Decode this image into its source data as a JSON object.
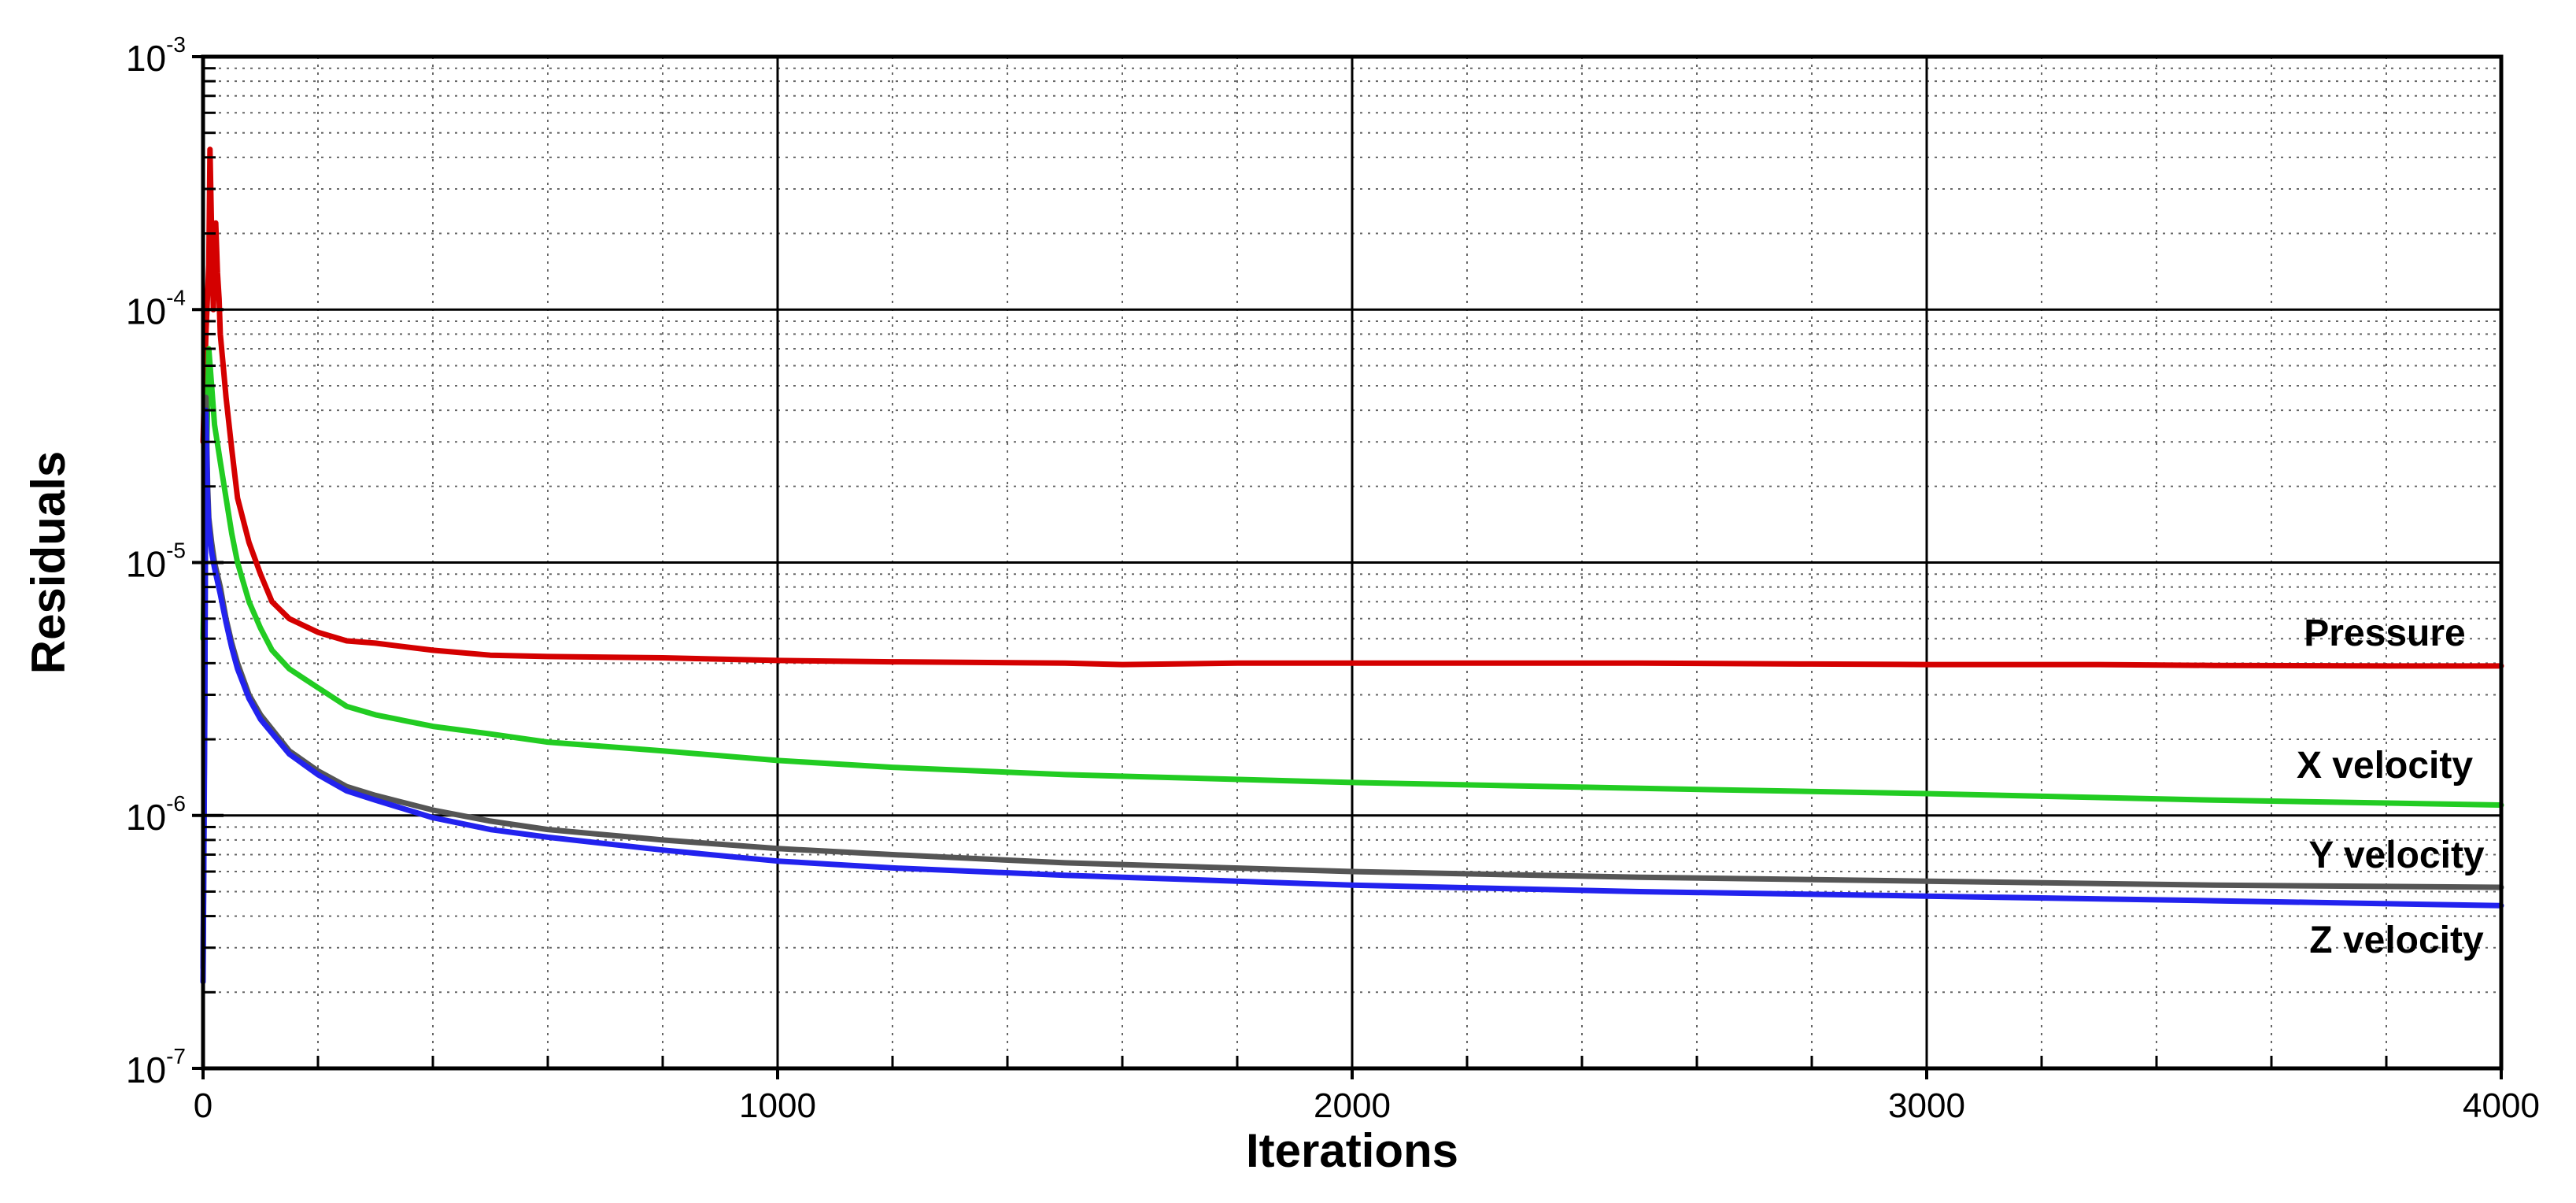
{
  "chart_data": {
    "type": "line",
    "title": "",
    "xlabel": "Iterations",
    "ylabel": "Residuals",
    "x_scale": "linear",
    "y_scale": "log",
    "xlim": [
      0,
      4000
    ],
    "ylim": [
      1e-07,
      0.001
    ],
    "x_ticks": [
      {
        "value": 0,
        "label": "0"
      },
      {
        "value": 1000,
        "label": "1000"
      },
      {
        "value": 2000,
        "label": "2000"
      },
      {
        "value": 3000,
        "label": "3000"
      },
      {
        "value": 4000,
        "label": "4000"
      }
    ],
    "y_ticks": [
      {
        "value": 1e-07,
        "base": "10",
        "exp": "-7"
      },
      {
        "value": 1e-06,
        "base": "10",
        "exp": "-6"
      },
      {
        "value": 1e-05,
        "base": "10",
        "exp": "-5"
      },
      {
        "value": 0.0001,
        "base": "10",
        "exp": "-4"
      },
      {
        "value": 0.001,
        "base": "10",
        "exp": "-3"
      }
    ],
    "grid": {
      "major": true,
      "minor": true,
      "minor_style": "dotted"
    },
    "legend": "inline labels near right end of each series",
    "series": [
      {
        "name": "Pressure",
        "color": "#d40000",
        "x": [
          0,
          5,
          10,
          12,
          15,
          18,
          20,
          22,
          25,
          28,
          30,
          35,
          40,
          50,
          60,
          80,
          100,
          120,
          150,
          200,
          250,
          300,
          400,
          500,
          600,
          800,
          1000,
          1200,
          1500,
          1600,
          1800,
          2000,
          2200,
          2500,
          2800,
          3000,
          3300,
          3500,
          3800,
          4000
        ],
        "y": [
          3e-05,
          8e-05,
          0.00015,
          0.00043,
          0.0002,
          0.0001,
          0.00015,
          0.00022,
          0.00014,
          0.00011,
          8e-05,
          6e-05,
          4.5e-05,
          2.8e-05,
          1.8e-05,
          1.2e-05,
          9e-06,
          7e-06,
          6e-06,
          5.3e-06,
          4.9e-06,
          4.8e-06,
          4.5e-06,
          4.3e-06,
          4.25e-06,
          4.2e-06,
          4.1e-06,
          4.05e-06,
          4e-06,
          3.95e-06,
          4e-06,
          4e-06,
          4e-06,
          4e-06,
          3.97e-06,
          3.95e-06,
          3.95e-06,
          3.92e-06,
          3.9e-06,
          3.9e-06
        ]
      },
      {
        "name": "X velocity",
        "color": "#22cc22",
        "x": [
          0,
          5,
          10,
          15,
          20,
          30,
          40,
          50,
          60,
          80,
          100,
          120,
          150,
          200,
          250,
          300,
          400,
          500,
          600,
          800,
          1000,
          1200,
          1500,
          2000,
          2500,
          3000,
          3500,
          4000
        ],
        "y": [
          5e-06,
          2e-05,
          7e-05,
          5e-05,
          3.5e-05,
          2.5e-05,
          1.8e-05,
          1.3e-05,
          1e-05,
          7e-06,
          5.5e-06,
          4.5e-06,
          3.8e-06,
          3.2e-06,
          2.7e-06,
          2.5e-06,
          2.25e-06,
          2.1e-06,
          1.95e-06,
          1.8e-06,
          1.65e-06,
          1.55e-06,
          1.45e-06,
          1.35e-06,
          1.28e-06,
          1.22e-06,
          1.15e-06,
          1.1e-06
        ]
      },
      {
        "name": "Y velocity",
        "color": "#555555",
        "x": [
          0,
          3,
          5,
          8,
          10,
          15,
          20,
          30,
          40,
          50,
          60,
          80,
          100,
          150,
          200,
          250,
          300,
          400,
          500,
          600,
          800,
          1000,
          1200,
          1500,
          2000,
          2500,
          3000,
          3500,
          4000
        ],
        "y": [
          2.5e-07,
          3e-06,
          4.5e-05,
          2e-05,
          1.5e-05,
          1.2e-05,
          1e-05,
          8e-06,
          6e-06,
          4.8e-06,
          4e-06,
          3e-06,
          2.5e-06,
          1.8e-06,
          1.5e-06,
          1.3e-06,
          1.2e-06,
          1.05e-06,
          9.5e-07,
          8.8e-07,
          8e-07,
          7.4e-07,
          7e-07,
          6.5e-07,
          6e-07,
          5.7e-07,
          5.5e-07,
          5.3e-07,
          5.2e-07
        ]
      },
      {
        "name": "Z velocity",
        "color": "#2222ee",
        "x": [
          0,
          3,
          5,
          8,
          10,
          15,
          20,
          30,
          40,
          50,
          60,
          80,
          100,
          150,
          200,
          250,
          300,
          400,
          500,
          600,
          800,
          1000,
          1200,
          1500,
          2000,
          2500,
          3000,
          3500,
          4000
        ],
        "y": [
          2.2e-07,
          2.5e-06,
          4e-05,
          1.8e-05,
          1.4e-05,
          1.1e-05,
          9.5e-06,
          7.5e-06,
          5.8e-06,
          4.6e-06,
          3.8e-06,
          2.9e-06,
          2.4e-06,
          1.75e-06,
          1.45e-06,
          1.25e-06,
          1.15e-06,
          9.8e-07,
          8.8e-07,
          8.2e-07,
          7.3e-07,
          6.6e-07,
          6.2e-07,
          5.8e-07,
          5.3e-07,
          5e-07,
          4.8e-07,
          4.6e-07,
          4.4e-07
        ]
      }
    ]
  }
}
